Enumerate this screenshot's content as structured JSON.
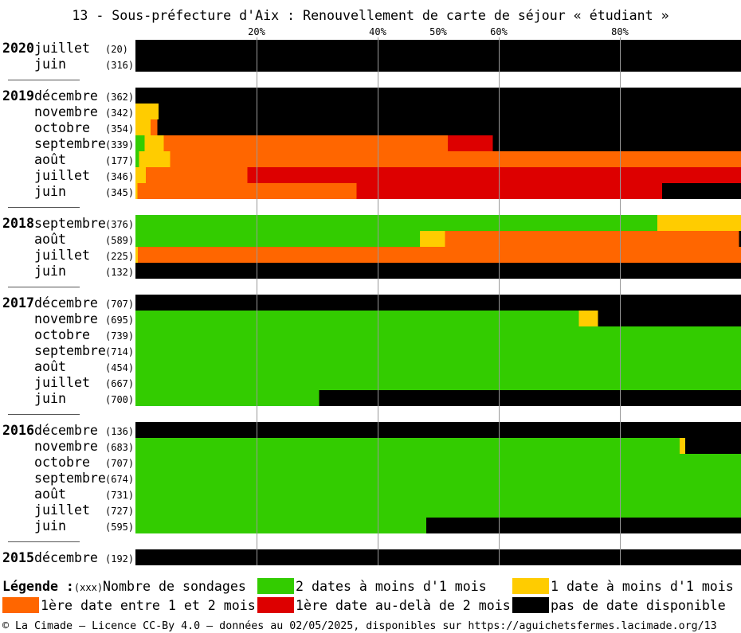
{
  "chart_data": {
    "type": "bar",
    "orientation": "horizontal",
    "stacking": "percent",
    "title": "13 - Sous-préfecture d'Aix : Renouvellement de carte de séjour « étudiant »",
    "xlim": [
      0,
      100
    ],
    "x_ticks": [
      20,
      40,
      50,
      60,
      80
    ],
    "x_tick_labels": [
      "20%",
      "40%",
      "50%",
      "60%",
      "80%"
    ],
    "gridlines_at": [
      20,
      40,
      60,
      80
    ],
    "grid": true,
    "legend_position": "bottom",
    "series": [
      {
        "name": "2 dates à moins d'1 mois",
        "color": "#33cc00"
      },
      {
        "name": "1 date à moins d'1 mois",
        "color": "#ffcc00"
      },
      {
        "name": "1ère date entre 1 et 2 mois",
        "color": "#ff6600"
      },
      {
        "name": "1ère date au-delà de 2 mois",
        "color": "#dd0000"
      },
      {
        "name": "pas de date disponible",
        "color": "#000000"
      }
    ],
    "groups": [
      {
        "year": "2020",
        "rows": [
          {
            "month": "juillet",
            "count": "(20)",
            "values": [
              0,
              0,
              0,
              0,
              100
            ]
          },
          {
            "month": "juin",
            "count": "(316)",
            "values": [
              0,
              0,
              0,
              0,
              100
            ]
          }
        ]
      },
      {
        "year": "2019",
        "rows": [
          {
            "month": "décembre",
            "count": "(362)",
            "values": [
              0,
              0,
              0,
              0,
              100
            ]
          },
          {
            "month": "novembre",
            "count": "(342)",
            "values": [
              0,
              3.8,
              0,
              0,
              96.2
            ]
          },
          {
            "month": "octobre",
            "count": "(354)",
            "values": [
              0,
              2.5,
              1.1,
              0,
              96.4
            ]
          },
          {
            "month": "septembre",
            "count": "(339)",
            "values": [
              1.5,
              3.2,
              46.9,
              7.4,
              41.0
            ]
          },
          {
            "month": "août",
            "count": "(177)",
            "values": [
              0.6,
              5.1,
              94.3,
              0,
              0
            ]
          },
          {
            "month": "juillet",
            "count": "(346)",
            "values": [
              0,
              1.7,
              16.8,
              81.5,
              0
            ]
          },
          {
            "month": "juin",
            "count": "(345)",
            "values": [
              0,
              0.3,
              36.2,
              50.5,
              13.0
            ]
          }
        ]
      },
      {
        "year": "2018",
        "rows": [
          {
            "month": "septembre",
            "count": "(376)",
            "values": [
              86.2,
              13.8,
              0,
              0,
              0
            ]
          },
          {
            "month": "août",
            "count": "(589)",
            "values": [
              47.0,
              4.1,
              48.6,
              0,
              0.3
            ]
          },
          {
            "month": "juillet",
            "count": "(225)",
            "values": [
              0,
              0.4,
              99.6,
              0,
              0
            ]
          },
          {
            "month": "juin",
            "count": "(132)",
            "values": [
              0,
              0,
              0,
              0,
              100
            ]
          }
        ]
      },
      {
        "year": "2017",
        "rows": [
          {
            "month": "décembre",
            "count": "(707)",
            "values": [
              0,
              0,
              0,
              0,
              100
            ]
          },
          {
            "month": "novembre",
            "count": "(695)",
            "values": [
              73.2,
              3.2,
              0,
              0,
              23.6
            ]
          },
          {
            "month": "octobre",
            "count": "(739)",
            "values": [
              100,
              0,
              0,
              0,
              0
            ]
          },
          {
            "month": "septembre",
            "count": "(714)",
            "values": [
              100,
              0,
              0,
              0,
              0
            ]
          },
          {
            "month": "août",
            "count": "(454)",
            "values": [
              100,
              0,
              0,
              0,
              0
            ]
          },
          {
            "month": "juillet",
            "count": "(667)",
            "values": [
              100,
              0,
              0,
              0,
              0
            ]
          },
          {
            "month": "juin",
            "count": "(700)",
            "values": [
              30.3,
              0,
              0,
              0,
              69.7
            ]
          }
        ]
      },
      {
        "year": "2016",
        "rows": [
          {
            "month": "décembre",
            "count": "(136)",
            "values": [
              0,
              0,
              0,
              0,
              100
            ]
          },
          {
            "month": "novembre",
            "count": "(683)",
            "values": [
              89.9,
              0.9,
              0,
              0,
              9.2
            ]
          },
          {
            "month": "octobre",
            "count": "(707)",
            "values": [
              100,
              0,
              0,
              0,
              0
            ]
          },
          {
            "month": "septembre",
            "count": "(674)",
            "values": [
              100,
              0,
              0,
              0,
              0
            ]
          },
          {
            "month": "août",
            "count": "(731)",
            "values": [
              100,
              0,
              0,
              0,
              0
            ]
          },
          {
            "month": "juillet",
            "count": "(727)",
            "values": [
              100,
              0,
              0,
              0,
              0
            ]
          },
          {
            "month": "juin",
            "count": "(595)",
            "values": [
              48.0,
              0,
              0,
              0,
              52.0
            ]
          }
        ]
      },
      {
        "year": "2015",
        "rows": [
          {
            "month": "décembre",
            "count": "(192)",
            "values": [
              0,
              0,
              0,
              0,
              100
            ]
          }
        ]
      }
    ]
  },
  "legend": {
    "heading": "Légende :",
    "count_hint": "(xxx)",
    "count_label": "Nombre de sondages"
  },
  "footer": "© La Cimade — Licence CC-By 4.0 — données au 02/05/2025, disponibles sur https://aguichetsfermes.lacimade.org/13"
}
